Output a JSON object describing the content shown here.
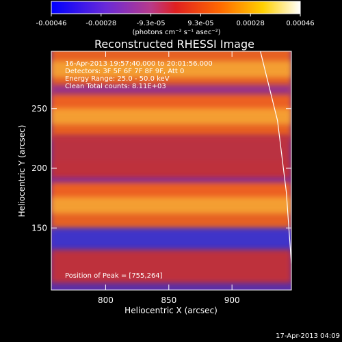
{
  "chart_data": {
    "type": "heatmap",
    "title": "Reconstructed RHESSI Image",
    "xlabel": "Heliocentric X (arcsec)",
    "ylabel": "Heliocentric Y (arcsec)",
    "xlim": [
      757,
      947
    ],
    "ylim": [
      98,
      298
    ],
    "x_ticks": [
      800,
      850,
      900
    ],
    "y_ticks": [
      150,
      200,
      250
    ],
    "colorbar": {
      "ticks": [
        "-0.00046",
        "-0.00028",
        "-9.3e-05",
        "9.3e-05",
        "0.00028",
        "0.00046"
      ],
      "unit_label": "(photons cm⁻² s⁻¹ asec⁻²)",
      "colors": [
        "#0000ff",
        "#7a2cbd",
        "#c82d2d",
        "#ff6600",
        "#ffd000",
        "#ffffff"
      ]
    },
    "annotations": [
      "16-Apr-2013 19:57:40.000 to 20:01:56.000",
      "Detectors: 3F 5F 6F 7F 8F 9F, Att 0",
      "Energy Range: 25.0 - 50.0 keV",
      "Clean      Total counts: 8.11E+03"
    ],
    "peak_label": "Position of Peak = [755,264]",
    "bands": [
      {
        "x": [
          757,
          947
        ],
        "y_start": 262,
        "y_end": 302,
        "level": 0.88
      },
      {
        "x": [
          757,
          947
        ],
        "y_start": 245,
        "y_end": 270,
        "level": 0.55
      },
      {
        "x": [
          757,
          947
        ],
        "y_start": 223,
        "y_end": 262,
        "level": 0.85
      },
      {
        "x": [
          757,
          947
        ],
        "y_start": 206,
        "y_end": 226,
        "level": 0.35
      },
      {
        "x": [
          757,
          947
        ],
        "y_start": 190,
        "y_end": 228,
        "level": 0.8
      },
      {
        "x": [
          757,
          947
        ],
        "y_start": 173,
        "y_end": 192,
        "level": 0.55
      },
      {
        "x": [
          757,
          947
        ],
        "y_start": 148,
        "y_end": 188,
        "level": 0.85
      },
      {
        "x": [
          757,
          947
        ],
        "y_start": 128,
        "y_end": 150,
        "level": 0.45
      },
      {
        "x": [
          757,
          947
        ],
        "y_start": 104,
        "y_end": 132,
        "level": 0.8
      }
    ],
    "limb": [
      [
        922,
        300
      ],
      [
        936,
        240
      ],
      [
        943,
        180
      ],
      [
        947,
        120
      ]
    ]
  },
  "footer": {
    "timestamp": "17-Apr-2013 04:09"
  }
}
